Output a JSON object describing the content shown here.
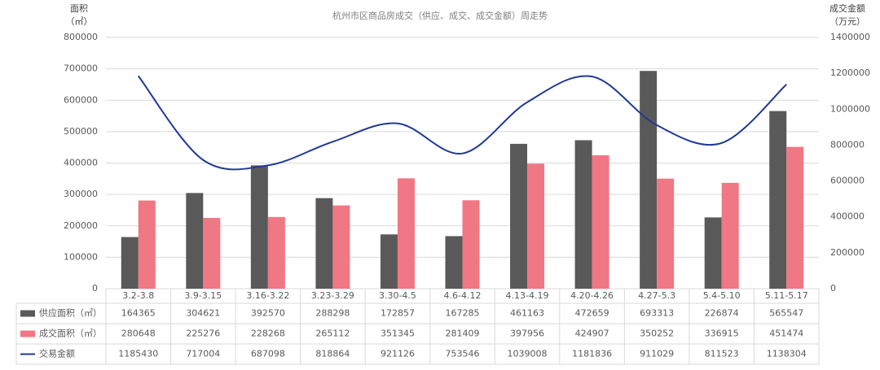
{
  "chart_data": {
    "type": "bar_line",
    "title": "杭州市区商品房成交（供应、成交、成交金额）周走势",
    "ylabel": [
      "面积",
      "（㎡）"
    ],
    "y2label": [
      "成交金额",
      "（万元）"
    ],
    "categories": [
      "3.2-3.8",
      "3.9-3.15",
      "3.16-3.22",
      "3.23-3.29",
      "3.30-4.5",
      "4.6-4.12",
      "4.13-4.19",
      "4.20-4.26",
      "4.27-5.3",
      "5.4-5.10",
      "5.11-5.17"
    ],
    "series": [
      {
        "name": "供应面积（㎡）",
        "type": "bar",
        "color": "#595959",
        "values": [
          164365,
          304621,
          392570,
          288298,
          172857,
          167285,
          461163,
          472659,
          693313,
          226874,
          565547
        ]
      },
      {
        "name": "成交面积（㎡）",
        "type": "bar",
        "color": "#f07784",
        "values": [
          280648,
          225276,
          228268,
          265112,
          351345,
          281409,
          397956,
          424907,
          350252,
          336915,
          451474
        ]
      },
      {
        "name": "交易金额",
        "type": "line",
        "axis": "y2",
        "color": "#1f3a93",
        "values": [
          1185430,
          717004,
          687098,
          818864,
          921126,
          753546,
          1039008,
          1181836,
          911029,
          811523,
          1138304
        ]
      }
    ],
    "ylim": [
      0,
      800000
    ],
    "yticks": [
      0,
      100000,
      200000,
      300000,
      400000,
      500000,
      600000,
      700000,
      800000
    ],
    "y2lim": [
      0,
      1400000
    ],
    "y2ticks": [
      0,
      200000,
      400000,
      600000,
      800000,
      1000000,
      1200000,
      1400000
    ],
    "grid": true
  }
}
